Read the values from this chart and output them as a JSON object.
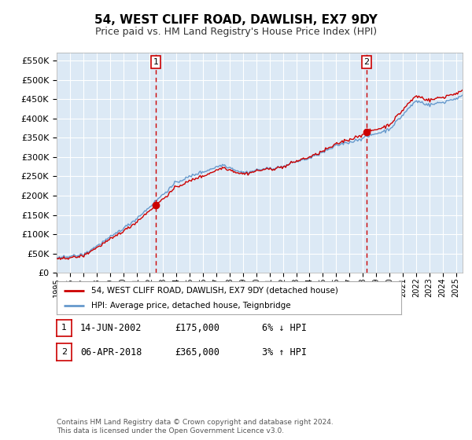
{
  "title": "54, WEST CLIFF ROAD, DAWLISH, EX7 9DY",
  "subtitle": "Price paid vs. HM Land Registry's House Price Index (HPI)",
  "red_line_label": "54, WEST CLIFF ROAD, DAWLISH, EX7 9DY (detached house)",
  "blue_line_label": "HPI: Average price, detached house, Teignbridge",
  "sale1_date": "14-JUN-2002",
  "sale1_price": 175000,
  "sale1_label": "6% ↓ HPI",
  "sale2_date": "06-APR-2018",
  "sale2_price": 365000,
  "sale2_label": "3% ↑ HPI",
  "footer": "Contains HM Land Registry data © Crown copyright and database right 2024.\nThis data is licensed under the Open Government Licence v3.0.",
  "plot_bg_color": "#dce9f5",
  "fig_bg_color": "#ffffff",
  "red_color": "#cc0000",
  "blue_color": "#6699cc",
  "ylim_min": 0,
  "ylim_max": 570000,
  "xlim_min": 1995,
  "xlim_max": 2025.5
}
